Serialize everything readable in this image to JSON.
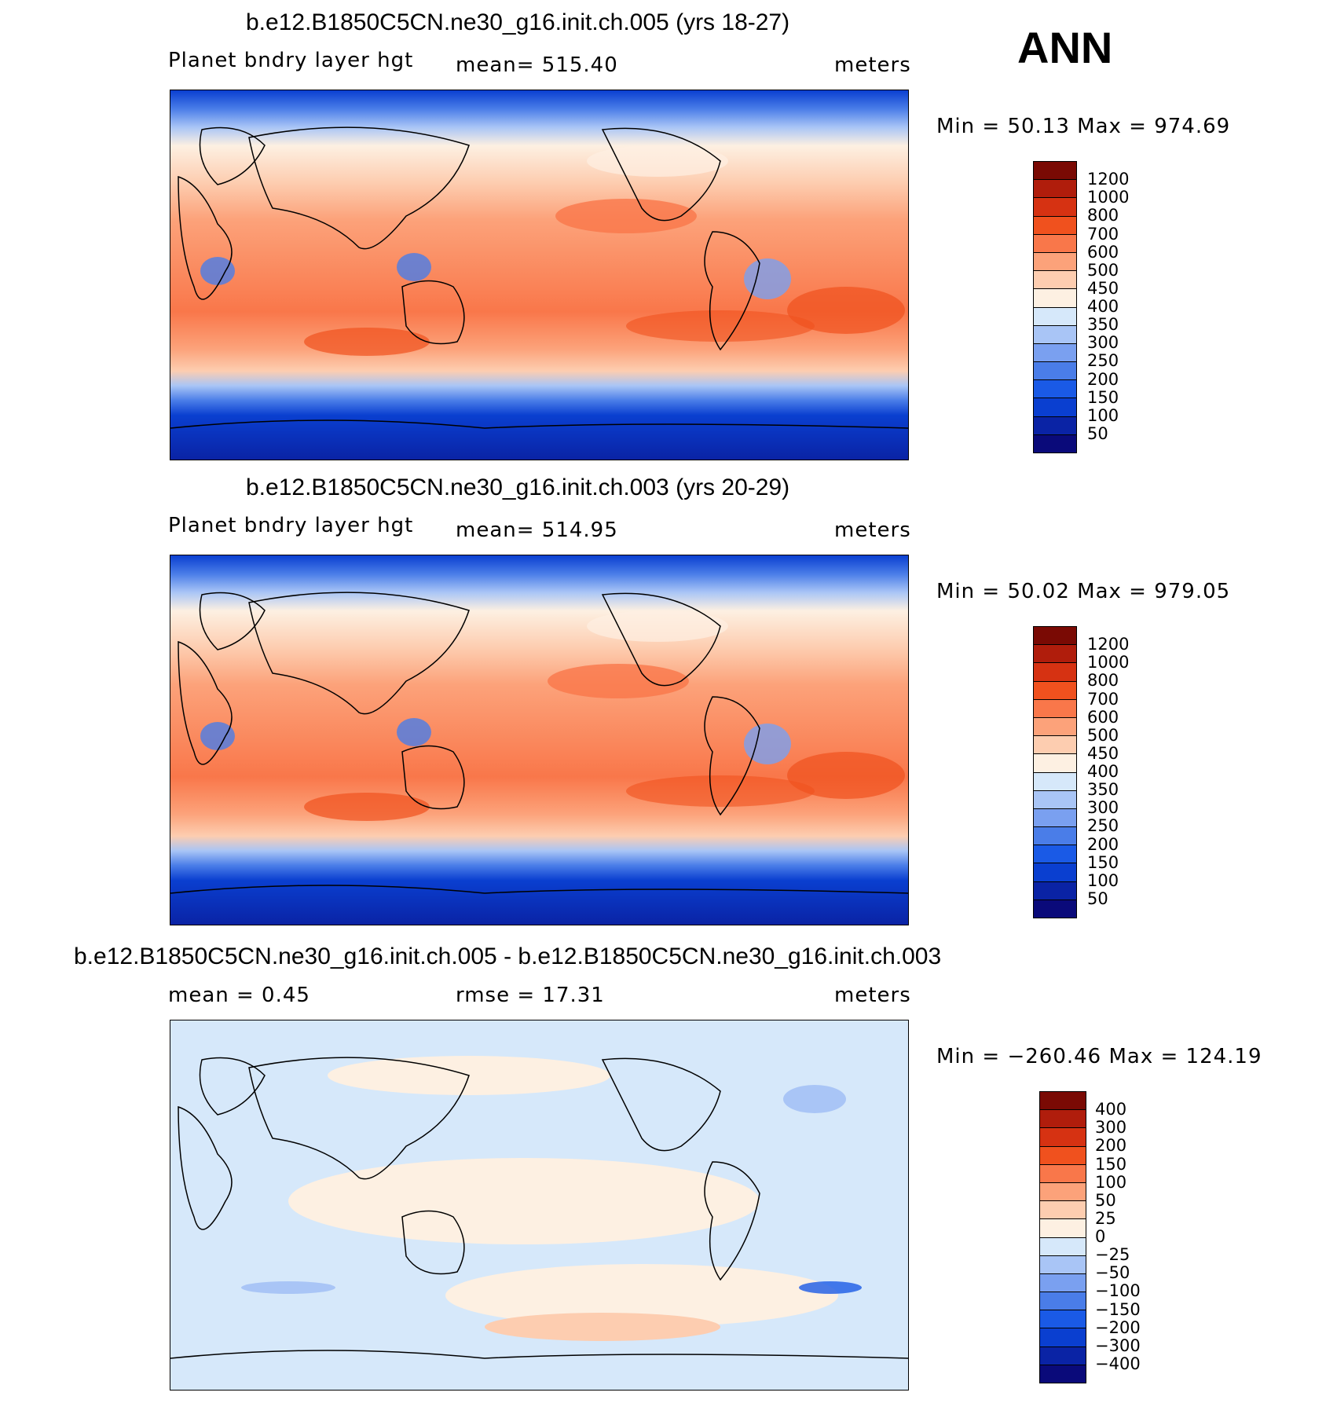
{
  "season": "ANN",
  "colors": {
    "abs_levels": [
      "#0a0a7a",
      "#0a23a5",
      "#0a3fd0",
      "#1a5ae6",
      "#4a7de8",
      "#7aa0f0",
      "#a9c5f6",
      "#d6e8fa",
      "#fdf0e2",
      "#fdcdb0",
      "#fca27a",
      "#f9774a",
      "#f0511e",
      "#d63212",
      "#b01d0c",
      "#7a0a04"
    ],
    "diff_levels": [
      "#0a0a7a",
      "#0a23a5",
      "#0a3fd0",
      "#1a5ae6",
      "#4a7de8",
      "#7aa0f0",
      "#a9c5f6",
      "#d6e8fa",
      "#fdf0e2",
      "#fdcdb0",
      "#fca27a",
      "#f9774a",
      "#f0511e",
      "#d63212",
      "#b01d0c",
      "#7a0a04"
    ]
  },
  "panels": [
    {
      "title": "b.e12.B1850C5CN.ne30_g16.init.ch.005 (yrs 18-27)",
      "field": "Planet bndry layer hgt",
      "stat1": "mean= 515.40",
      "units": "meters",
      "minmax": "Min = 50.13 Max = 974.69",
      "levels": [
        "1200",
        "1000",
        "800",
        "700",
        "600",
        "500",
        "450",
        "400",
        "350",
        "300",
        "250",
        "200",
        "150",
        "100",
        "50"
      ]
    },
    {
      "title": "b.e12.B1850C5CN.ne30_g16.init.ch.003 (yrs 20-29)",
      "field": "Planet bndry layer hgt",
      "stat1": "mean= 514.95",
      "units": "meters",
      "minmax": "Min = 50.02 Max = 979.05",
      "levels": [
        "1200",
        "1000",
        "800",
        "700",
        "600",
        "500",
        "450",
        "400",
        "350",
        "300",
        "250",
        "200",
        "150",
        "100",
        "50"
      ]
    },
    {
      "title": "b.e12.B1850C5CN.ne30_g16.init.ch.005 - b.e12.B1850C5CN.ne30_g16.init.ch.003",
      "field": "mean = 0.45",
      "stat1": "rmse = 17.31",
      "units": "meters",
      "minmax": "Min = −260.46 Max = 124.19",
      "levels": [
        "400",
        "300",
        "200",
        "150",
        "100",
        "50",
        "25",
        "0",
        "−25",
        "−50",
        "−100",
        "−150",
        "−200",
        "−300",
        "−400"
      ]
    }
  ]
}
